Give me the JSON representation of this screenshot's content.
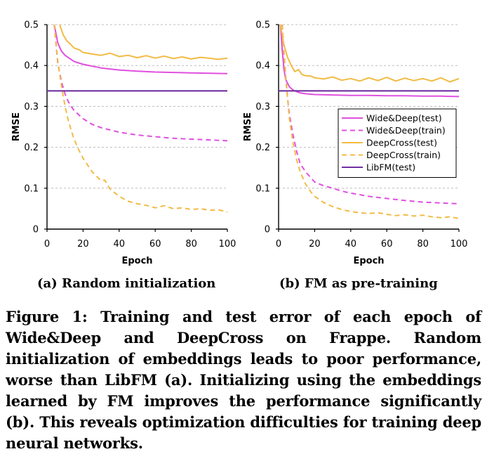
{
  "chart_data": [
    {
      "type": "line",
      "subcaption": "(a) Random initialization",
      "xlabel": "Epoch",
      "ylabel": "RMSE",
      "xlim": [
        0,
        100
      ],
      "ylim": [
        0,
        0.5
      ],
      "xticks": [
        "0",
        "20",
        "40",
        "60",
        "80",
        "100"
      ],
      "yticks": [
        "0",
        "0.1",
        "0.2",
        "0.3",
        "0.4",
        "0.5"
      ],
      "grid": "horizontal dashed",
      "legend": "none",
      "series": [
        {
          "name": "Wide&Deep(test)",
          "color": "#e050e0",
          "dash": "solid",
          "x": [
            4,
            6,
            8,
            10,
            15,
            20,
            30,
            40,
            50,
            60,
            70,
            80,
            90,
            100
          ],
          "y": [
            0.5,
            0.455,
            0.435,
            0.425,
            0.41,
            0.403,
            0.394,
            0.389,
            0.386,
            0.384,
            0.383,
            0.382,
            0.381,
            0.38
          ]
        },
        {
          "name": "Wide&Deep(train)",
          "color": "#e050e0",
          "dash": "dashed",
          "x": [
            4,
            6,
            8,
            10,
            12,
            15,
            20,
            25,
            30,
            40,
            50,
            60,
            70,
            80,
            90,
            100
          ],
          "y": [
            0.5,
            0.405,
            0.36,
            0.33,
            0.31,
            0.29,
            0.27,
            0.256,
            0.248,
            0.237,
            0.23,
            0.226,
            0.222,
            0.22,
            0.218,
            0.216
          ]
        },
        {
          "name": "DeepCross(test)",
          "color": "#f2bb44",
          "dash": "solid",
          "x": [
            7,
            9,
            11,
            13,
            15,
            18,
            20,
            25,
            30,
            35,
            40,
            45,
            50,
            55,
            60,
            65,
            70,
            75,
            80,
            85,
            90,
            95,
            100
          ],
          "y": [
            0.5,
            0.475,
            0.46,
            0.452,
            0.443,
            0.438,
            0.432,
            0.428,
            0.425,
            0.43,
            0.422,
            0.425,
            0.419,
            0.424,
            0.418,
            0.423,
            0.417,
            0.421,
            0.416,
            0.42,
            0.418,
            0.415,
            0.418
          ]
        },
        {
          "name": "DeepCross(train)",
          "color": "#f2bb44",
          "dash": "dashed",
          "x": [
            4,
            6,
            8,
            10,
            12,
            15,
            18,
            20,
            25,
            30,
            32,
            35,
            40,
            45,
            50,
            55,
            60,
            65,
            70,
            75,
            80,
            85,
            90,
            95,
            100
          ],
          "y": [
            0.5,
            0.41,
            0.35,
            0.3,
            0.262,
            0.22,
            0.19,
            0.173,
            0.14,
            0.118,
            0.12,
            0.098,
            0.08,
            0.068,
            0.062,
            0.058,
            0.052,
            0.057,
            0.05,
            0.052,
            0.048,
            0.05,
            0.046,
            0.047,
            0.042
          ]
        },
        {
          "name": "LibFM(test)",
          "color": "#7030a0",
          "dash": "solid",
          "x": [
            0,
            100
          ],
          "y": [
            0.338,
            0.338
          ]
        }
      ]
    },
    {
      "type": "line",
      "subcaption": "(b) FM as pre-training",
      "xlabel": "Epoch",
      "ylabel": "RMSE",
      "xlim": [
        0,
        100
      ],
      "ylim": [
        0,
        0.5
      ],
      "xticks": [
        "0",
        "20",
        "40",
        "60",
        "80",
        "100"
      ],
      "yticks": [
        "0",
        "0.1",
        "0.2",
        "0.3",
        "0.4",
        "0.5"
      ],
      "grid": "horizontal dashed",
      "legend": "right",
      "series": [
        {
          "name": "Wide&Deep(test)",
          "color": "#e050e0",
          "dash": "solid",
          "x": [
            1,
            2,
            3,
            4,
            6,
            8,
            10,
            12,
            15,
            20,
            30,
            40,
            50,
            60,
            70,
            80,
            90,
            100
          ],
          "y": [
            0.5,
            0.44,
            0.39,
            0.365,
            0.348,
            0.34,
            0.336,
            0.333,
            0.331,
            0.329,
            0.328,
            0.327,
            0.327,
            0.326,
            0.326,
            0.325,
            0.325,
            0.324
          ]
        },
        {
          "name": "Wide&Deep(train)",
          "color": "#e050e0",
          "dash": "dashed",
          "x": [
            2,
            3,
            4,
            5,
            6,
            8,
            10,
            12,
            15,
            18,
            20,
            25,
            30,
            35,
            40,
            50,
            60,
            70,
            80,
            90,
            100
          ],
          "y": [
            0.5,
            0.43,
            0.37,
            0.32,
            0.28,
            0.23,
            0.19,
            0.16,
            0.14,
            0.125,
            0.115,
            0.106,
            0.1,
            0.093,
            0.088,
            0.08,
            0.075,
            0.07,
            0.066,
            0.064,
            0.062
          ]
        },
        {
          "name": "DeepCross(test)",
          "color": "#f2bb44",
          "dash": "solid",
          "x": [
            1,
            3,
            5,
            7,
            9,
            11,
            13,
            15,
            18,
            20,
            25,
            30,
            35,
            40,
            45,
            50,
            55,
            60,
            65,
            70,
            75,
            80,
            85,
            90,
            95,
            100
          ],
          "y": [
            0.5,
            0.45,
            0.42,
            0.4,
            0.385,
            0.39,
            0.378,
            0.375,
            0.374,
            0.37,
            0.367,
            0.372,
            0.364,
            0.368,
            0.362,
            0.37,
            0.363,
            0.371,
            0.362,
            0.369,
            0.363,
            0.368,
            0.362,
            0.37,
            0.36,
            0.368
          ]
        },
        {
          "name": "DeepCross(train)",
          "color": "#f2bb44",
          "dash": "dashed",
          "x": [
            2,
            3,
            4,
            5,
            6,
            8,
            10,
            12,
            15,
            18,
            20,
            25,
            30,
            35,
            40,
            45,
            50,
            55,
            60,
            65,
            70,
            75,
            80,
            85,
            90,
            95,
            100
          ],
          "y": [
            0.5,
            0.43,
            0.37,
            0.32,
            0.27,
            0.21,
            0.17,
            0.14,
            0.11,
            0.09,
            0.08,
            0.065,
            0.055,
            0.048,
            0.043,
            0.04,
            0.038,
            0.04,
            0.036,
            0.033,
            0.035,
            0.032,
            0.034,
            0.03,
            0.028,
            0.03,
            0.026
          ]
        },
        {
          "name": "LibFM(test)",
          "color": "#7030a0",
          "dash": "solid",
          "x": [
            0,
            100
          ],
          "y": [
            0.338,
            0.338
          ]
        }
      ]
    }
  ],
  "subcaptions": {
    "a": "(a) Random initialization",
    "b": "(b) FM as pre-training"
  },
  "caption": "Figure 1: Training and test error of each epoch of Wide&Deep and DeepCross on Frappe. Random initialization of embeddings leads to poor performance, worse than LibFM (a). Initializing using the embeddings learned by FM improves the performance significantly (b). This reveals optimization difficulties for training deep neural networks."
}
